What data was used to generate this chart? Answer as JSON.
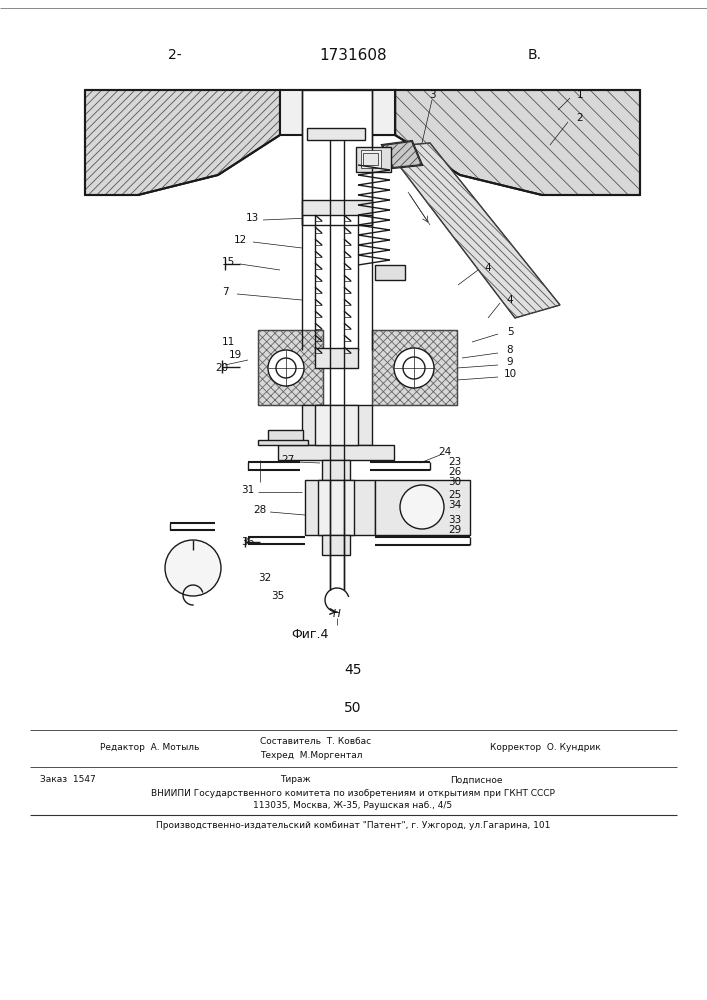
{
  "bg_color": "#ffffff",
  "line_color": "#1a1a1a",
  "hatch_color": "#333333",
  "page_number_top_left": "2-",
  "patent_number": "1731608",
  "page_letter_top_right": "В.",
  "fig_label": "Фиг.4",
  "page_number_bottom": "45",
  "page_number_bottom2": "50",
  "footer_line1_left": "Редактор  А. Мотыль",
  "footer_line1_center_top": "Составитель  Т. Ковбас",
  "footer_line1_center": "Техред  М.Моргентал",
  "footer_line1_right": "Корректор  О. Кундрик",
  "footer_zakaz": "Заказ  1547",
  "footer_tirazh": "Тираж",
  "footer_podpisnoe": "Подписное",
  "footer_vniip": "ВНИИПИ Государственного комитета по изобретениям и открытиям при ГКНТ СССР",
  "footer_addr": "113035, Москва, Ж-35, Раушская наб., 4/5",
  "footer_patent": "Производственно-издательский комбинат \"Патент\", г. Ужгород, ул.Гагарина, 101"
}
